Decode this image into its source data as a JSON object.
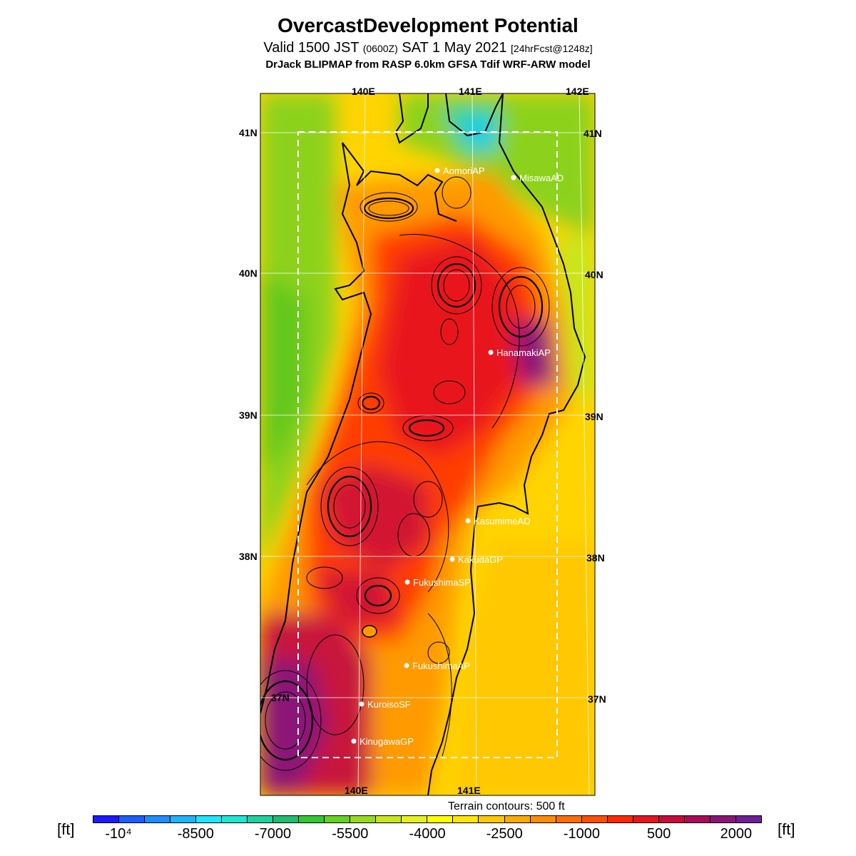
{
  "header": {
    "title": "OvercastDevelopment Potential",
    "valid_prefix": "Valid 1500 JST",
    "valid_utc": "(0600Z)",
    "valid_date": "SAT 1 May 2021",
    "forecast": "[24hrFcst@1248z]",
    "model": "DrJack BLIPMAP from RASP 6.0km GFSA Tdif WRF-ARW model"
  },
  "axes": {
    "lon_top": [
      "140E",
      "141E",
      "142E"
    ],
    "lon_bottom": [
      "140E",
      "141E"
    ],
    "lat_left": [
      "41N",
      "40N",
      "39N",
      "38N",
      "37N"
    ],
    "lat_right": [
      "41N",
      "40N",
      "39N",
      "38N",
      "37N"
    ]
  },
  "stations": [
    {
      "name": "AomoriAP"
    },
    {
      "name": "MisawaAD"
    },
    {
      "name": "HanamakiAP"
    },
    {
      "name": "KasumimeAD"
    },
    {
      "name": "KakudaGP"
    },
    {
      "name": "FukushimaSP"
    },
    {
      "name": "FukushimaAP"
    },
    {
      "name": "KuroisoSF"
    },
    {
      "name": "KinugawaGP"
    }
  ],
  "terrain_note": "Terrain contours: 500 ft",
  "legend": {
    "unit": "[ft]",
    "tick_labels": [
      "-10⁴",
      "-8500",
      "-7000",
      "-5500",
      "-4000",
      "-2500",
      "-1000",
      "500",
      "2000"
    ],
    "colors": [
      "#1a1aff",
      "#1f5cff",
      "#1e8cff",
      "#1eb4ff",
      "#1ee6ff",
      "#1ee6d2",
      "#1ed2a0",
      "#1ebe6e",
      "#32c832",
      "#64d21e",
      "#96dc1e",
      "#c8e61e",
      "#e6f01e",
      "#ffff00",
      "#ffe600",
      "#ffc800",
      "#ffaa00",
      "#ff8c00",
      "#ff6e00",
      "#ff5000",
      "#ff2800",
      "#e6141e",
      "#c80a3c",
      "#aa0a5a",
      "#8c1478",
      "#6e1e96"
    ]
  }
}
